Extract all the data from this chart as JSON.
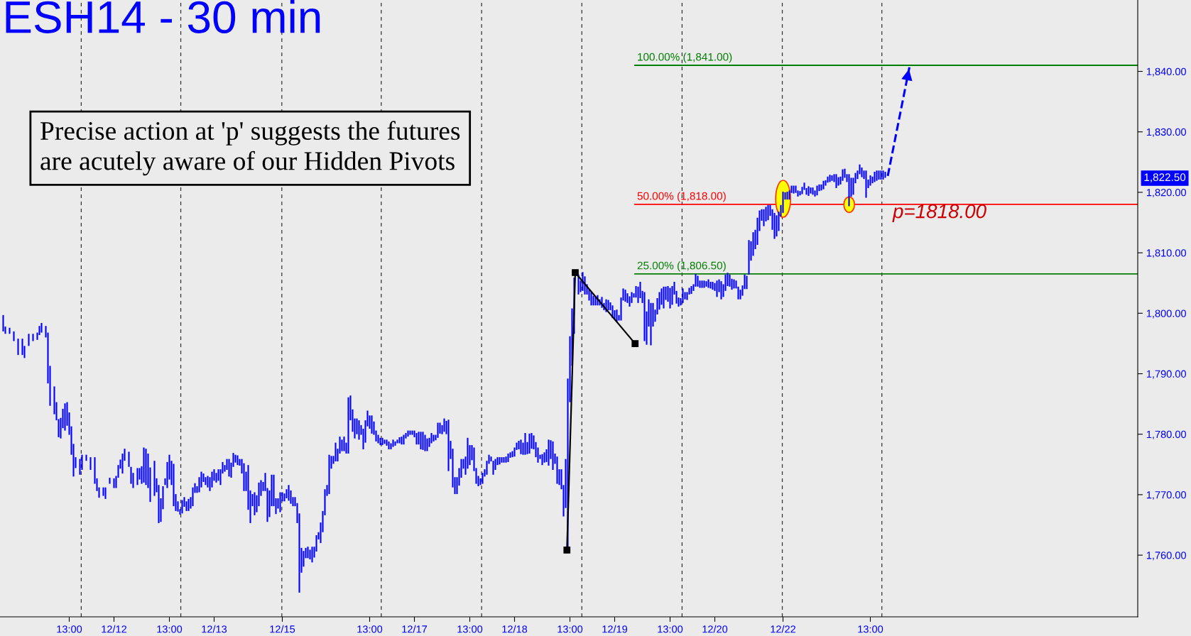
{
  "chart_data": {
    "type": "bar",
    "title": "ESH14 - 30 min",
    "annotations": [
      "Precise action at 'p' suggests the futures\nare acutely aware of our Hidden Pivots",
      "p=1818.00",
      "1,822.50"
    ],
    "categories": [
      null,
      null,
      null,
      null,
      null,
      null,
      null,
      null,
      null,
      null,
      null,
      null,
      null,
      null,
      null,
      null,
      null,
      null,
      null,
      null,
      null,
      null,
      null,
      null,
      null,
      null,
      null,
      null,
      null,
      null,
      null,
      null,
      "13:00",
      null,
      null,
      null,
      null,
      null,
      null,
      null,
      null,
      null,
      null,
      null,
      null,
      null,
      null,
      null,
      null,
      null,
      null,
      null,
      null,
      "12/12",
      null,
      null,
      null,
      null,
      null,
      null,
      null,
      null,
      null,
      null,
      null,
      null,
      null,
      null,
      null,
      null,
      null,
      null,
      null,
      null,
      null,
      null,
      null,
      null,
      null,
      "13:00",
      null,
      null,
      null,
      null,
      null,
      null,
      null,
      null,
      null,
      null,
      null,
      null,
      null,
      null,
      null,
      null,
      null,
      null,
      null,
      null,
      "12/13",
      null,
      null,
      null,
      null,
      null,
      null,
      null,
      null,
      null,
      null,
      null,
      null,
      null,
      null,
      null,
      null,
      null,
      null,
      null,
      null,
      null,
      null,
      null,
      null,
      null,
      null,
      null,
      null,
      null,
      null,
      null,
      "12/15",
      null,
      null,
      null,
      null,
      null,
      null,
      null,
      null,
      null,
      null,
      null,
      null,
      null,
      null,
      null,
      null,
      null,
      null,
      null,
      null,
      null,
      null,
      null,
      null,
      null,
      null,
      null,
      null,
      null,
      null,
      null,
      null,
      null,
      null,
      null,
      null,
      null,
      null,
      null,
      null,
      "13:00",
      null,
      null,
      null,
      null,
      null,
      null,
      null,
      null,
      null,
      null,
      null,
      null,
      null,
      null,
      null,
      null,
      null,
      null,
      null,
      null,
      "12/17",
      null,
      null,
      null,
      null,
      null,
      null,
      null,
      null,
      null,
      null,
      null,
      null,
      null,
      null,
      null,
      null,
      null,
      null,
      null,
      null,
      null,
      null,
      null,
      null,
      null,
      "13:00",
      null,
      null,
      null,
      null,
      null,
      null,
      null,
      null,
      null,
      null,
      null,
      null,
      null,
      null,
      null,
      null,
      null,
      null,
      null,
      null,
      "12/18",
      null,
      null,
      null,
      null,
      null,
      null,
      null,
      null,
      null,
      null,
      null,
      null,
      null,
      null,
      null,
      null,
      null,
      null,
      null,
      null,
      null,
      null,
      null,
      null,
      null,
      "13:00",
      null,
      null,
      null,
      null,
      null,
      null,
      null,
      null,
      null,
      null,
      null,
      null,
      null,
      null,
      null,
      null,
      null,
      null,
      null,
      null,
      "12/19",
      null,
      null,
      null,
      null,
      null,
      null,
      null,
      null,
      null,
      null,
      null,
      null,
      null,
      null,
      null,
      null,
      null,
      null,
      null,
      null,
      null,
      null,
      null,
      null,
      null,
      "13:00",
      null,
      null,
      null,
      null,
      null,
      null,
      null,
      null,
      null,
      null,
      null,
      null,
      null,
      null,
      null,
      null,
      null,
      null,
      null,
      null,
      "12/20",
      null,
      null,
      null,
      null,
      null,
      null,
      null,
      null,
      null,
      null,
      null,
      null,
      null,
      null,
      null,
      null,
      null,
      null,
      null,
      null,
      null,
      null,
      null,
      null,
      null,
      null,
      null,
      null,
      null,
      null,
      null,
      "12/22",
      null,
      null,
      null,
      null,
      null,
      null,
      null,
      null,
      null,
      null,
      null,
      null,
      null,
      null,
      null,
      null,
      null,
      null,
      null,
      null,
      null,
      null,
      null,
      null,
      null,
      null,
      null,
      null,
      null,
      null,
      null,
      null,
      null,
      null,
      null,
      null,
      null,
      null,
      null,
      null,
      "13:00",
      null,
      null,
      null,
      null,
      null,
      null,
      null,
      null,
      null,
      null,
      null,
      null,
      null,
      null,
      null,
      null,
      null,
      null,
      null,
      null,
      null,
      null,
      null,
      null,
      null,
      null,
      null,
      null,
      null,
      null,
      null,
      null,
      null,
      null,
      null,
      null,
      null,
      null,
      null,
      null,
      null,
      null,
      null,
      null,
      null,
      null,
      null,
      null,
      null,
      null,
      null,
      null,
      null,
      null,
      null,
      null,
      null,
      null,
      null,
      null,
      null,
      null,
      null,
      null,
      null,
      null,
      null,
      null,
      null,
      null,
      null,
      null,
      null,
      null,
      null,
      null,
      null,
      null,
      null,
      null,
      null,
      null,
      null,
      null,
      null,
      null,
      null,
      null,
      null,
      null,
      null,
      null,
      null,
      null,
      null,
      null,
      null,
      null,
      null,
      null,
      null,
      null,
      null,
      null,
      null,
      null,
      null,
      null,
      null,
      null,
      null,
      null,
      null,
      null,
      null,
      null,
      null,
      null,
      null,
      null,
      null,
      null,
      null,
      null,
      null
    ],
    "ylim": [
      1749.8,
      1851.8
    ],
    "yticks": [
      {
        "value": 1760,
        "label": "1,760.00"
      },
      {
        "value": 1770,
        "label": "1,770.00"
      },
      {
        "value": 1780,
        "label": "1,780.00"
      },
      {
        "value": 1790,
        "label": "1,790.00"
      },
      {
        "value": 1800,
        "label": "1,800.00"
      },
      {
        "value": 1810,
        "label": "1,810.00"
      },
      {
        "value": 1820,
        "label": "1,820.00"
      },
      {
        "value": 1830,
        "label": "1,830.00"
      },
      {
        "value": 1840,
        "label": "1,840.00"
      }
    ],
    "ref_lines": [
      {
        "axis": "y",
        "value": 1841,
        "label": "100.00% (1,841.00)",
        "color": "#008000"
      },
      {
        "axis": "y",
        "value": 1818,
        "label": "50.00% (1,818.00)",
        "color": "#ff0000"
      },
      {
        "axis": "y",
        "value": 1806.5,
        "label": "25.00% (1,806.50)",
        "color": "#008000"
      }
    ],
    "series": [
      {
        "color": "#0000ff",
        "base": [
          null,
          1797.0,
          1796.6,
          null,
          1796.6,
          null,
          1795.4,
          null,
          1793.1,
          null,
          1793.1,
          1792.6,
          null,
          1794.6,
          null,
          1795.4,
          null,
          1795.6,
          1796.4,
          1796.8,
          null,
          1796.0,
          1788.4,
          1784.7,
          null,
          1783.3,
          1782.3,
          1779.5,
          1779.3,
          1781.0,
          1780.6,
          1781.4,
          1779.9,
          1776.6,
          1773.0,
          1774.4,
          null,
          1773.3,
          1774.1,
          null,
          1775.6,
          null,
          1774.1,
          null,
          1771.8,
          1770.6,
          1769.5,
          null,
          1769.8,
          1769.3,
          null,
          1771.8,
          null,
          1771.1,
          1771.1,
          1772.8,
          1774.3,
          1773.5,
          1775.6,
          null,
          1774.6,
          1771.8,
          1771.1,
          null,
          1771.6,
          1772.5,
          1771.8,
          1772.0,
          1771.6,
          1771.1,
          1768.8,
          null,
          1769.8,
          1770.4,
          1765.3,
          1765.5,
          1767.6,
          1771.6,
          1771.1,
          1772.5,
          1771.6,
          1768.1,
          1767.3,
          1767.2,
          1766.7,
          1766.9,
          1768.0,
          1767.3,
          1767.3,
          1767.7,
          1768.1,
          1770.3,
          1770.3,
          1770.4,
          1771.2,
          1772.1,
          1771.6,
          1771.2,
          1770.6,
          1771.2,
          1772.3,
          1772.0,
          1772.3,
          1771.6,
          1773.5,
          1773.8,
          1774.1,
          1773.0,
          1772.8,
          1774.6,
          1775.3,
          1774.9,
          1774.8,
          1773.5,
          1770.6,
          1770.6,
          1767.5,
          1765.3,
          1768.1,
          1766.6,
          1767.1,
          1768.1,
          1769.8,
          1770.6,
          1770.6,
          1765.5,
          1766.3,
          1768.1,
          1768.1,
          1766.8,
          1767.7,
          1767.1,
          1768.9,
          1768.9,
          1769.4,
          1769.0,
          1768.5,
          1768.1,
          1768.1,
          1765.3,
          1753.8,
          1757.1,
          1758.1,
          1759.5,
          1759.5,
          1759.3,
          1758.8,
          1759.6,
          1760.6,
          1762.6,
          1762.0,
          1763.8,
          1766.6,
          1769.8,
          1770.1,
          1774.3,
          1775.1,
          1775.5,
          1775.5,
          1776.8,
          1777.2,
          1777.2,
          1776.8,
          1776.8,
          1782.3,
          1780.4,
          1779.3,
          1780.0,
          1779.1,
          1779.9,
          1777.5,
          1778.6,
          1781.3,
          1780.9,
          1780.1,
          1779.9,
          1778.8,
          1778.5,
          1778.2,
          1778.2,
          1778.4,
          1778.1,
          1777.5,
          1777.5,
          1777.9,
          1778.1,
          1778.5,
          1778.5,
          1778.3,
          1778.3,
          1779.3,
          1779.6,
          1779.9,
          1779.9,
          1779.5,
          1778.3,
          1778.3,
          1777.5,
          1777.4,
          1777.2,
          1777.2,
          1777.9,
          1778.5,
          1778.8,
          1779.0,
          1779.4,
          1780.1,
          1780.0,
          1780.4,
          1780.0,
          1773.9,
          1775.9,
          1771.2,
          1770.1,
          1770.1,
          1771.5,
          1772.8,
          1774.3,
          1773.3,
          1774.3,
          1774.9,
          1775.7,
          1773.9,
          1771.8,
          1771.4,
          1771.6,
          1771.8,
          1773.0,
          1773.3,
          1775.1,
          1775.5,
          1773.3,
          1774.1,
          1774.9,
          1775.0,
          1775.3,
          1775.3,
          1775.3,
          1775.4,
          1776.1,
          1776.2,
          1776.3,
          1777.4,
          1777.5,
          1776.7,
          1776.6,
          1776.6,
          1776.7,
          1776.8,
          1777.6,
          1777.5,
          1776.2,
          1775.3,
          1775.9,
          1774.9,
          1775.3,
          1775.4,
          1774.8,
          1775.9,
          1774.1,
          1775.1,
          1771.8,
          1771.6,
          1770.9,
          1766.4,
          1767.8,
          1761.0,
          1785.3,
          1791.3,
          1796.6,
          null,
          1803.1,
          1803.5,
          1803.7,
          1803.1,
          1803.1,
          1802.1,
          1801.3,
          1801.3,
          1801.3,
          1801.3,
          1801.3,
          1800.9,
          1800.5,
          1800.2,
          1800.5,
          1800.5,
          1799.2,
          1799.0,
          1798.6,
          1798.8,
          1798.8,
          1802.1,
          1801.9,
          1801.7,
          1801.1,
          1801.7,
          1802.6,
          1802.6,
          1801.7,
          1802.5,
          1801.7,
          1795.4,
          1794.8,
          1797.8,
          1794.7,
          1797.8,
          1798.6,
          1799.8,
          1800.6,
          1801.4,
          1800.8,
          1802.2,
          1801.9,
          1800.8,
          1801.4,
          1803.1,
          1801.6,
          1801.1,
          1801.3,
          1801.7,
          1802.3,
          1802.2,
          1803.1,
          1803.2,
          1803.7,
          1804.4,
          1804.4,
          1804.2,
          1804.2,
          1804.2,
          1804.4,
          1804.2,
          1804.1,
          1803.9,
          1803.7,
          1802.7,
          1803.5,
          1802.3,
          1802.7,
          1803.7,
          1804.5,
          1804.4,
          1803.9,
          1804.1,
          1804.1,
          1802.3,
          1802.3,
          1802.9,
          1804.0,
          1804.0,
          1806.4,
          1808.7,
          1809.5,
          1810.6,
          1811.3,
          1813.6,
          1815.3,
          1814.4,
          1815.2,
          1815.4,
          1816.1,
          1813.8,
          1812.3,
          1812.7,
          1813.6,
          1816.0,
          1816.6,
          1818.8,
          1818.8,
          1818.8,
          1819.9,
          1819.8,
          1819.9,
          1819.3,
          1819.5,
          1819.7,
          1820.4,
          1819.6,
          1819.4,
          1819.8,
          1819.6,
          1819.3,
          1819.5,
          1820.2,
          1820.3,
          1820.5,
          1821.1,
          1821.6,
          1821.7,
          1821.9,
          1821.7,
          1820.7,
          1821.1,
          1821.3,
          1821.9,
          1822.4,
          1821.7,
          1817.7,
          1819.3,
          1819.6,
          1821.5,
          1822.2,
          1823.0,
          1822.5,
          1822.2,
          1819.1,
          1820.7,
          1821.1,
          1821.5,
          1821.7,
          1821.9,
          1822.1,
          1822.1,
          1822.1,
          1822.4,
          null,
          null,
          null,
          null,
          null,
          null,
          null,
          null,
          null,
          null,
          null,
          null,
          null,
          null,
          null,
          null,
          null,
          null,
          null,
          null,
          null,
          null,
          null,
          null,
          null,
          null,
          null,
          null,
          null,
          null,
          null,
          null,
          null,
          null,
          null,
          null,
          null,
          null,
          null,
          null,
          null,
          null,
          null,
          null,
          null,
          null,
          null,
          null,
          null,
          null,
          null,
          null,
          null,
          null,
          null,
          null,
          null,
          null,
          null,
          null,
          null,
          null,
          null,
          null,
          null,
          null,
          null,
          null,
          null,
          null,
          null,
          null,
          null,
          null,
          null,
          null,
          null,
          null,
          null,
          null,
          null,
          null,
          null,
          null,
          null,
          null,
          null,
          null,
          null,
          null,
          null,
          null,
          null,
          null,
          null,
          null,
          null,
          null,
          null,
          null,
          null,
          null,
          null,
          null,
          null,
          null,
          null,
          null,
          null,
          null,
          null,
          null,
          null,
          null,
          null,
          null,
          null,
          null
        ],
        "values": [
          null,
          2.7,
          1.2,
          null,
          1.0,
          null,
          1.6,
          null,
          2.7,
          null,
          2.7,
          2.0,
          null,
          2.0,
          null,
          1.2,
          null,
          1.2,
          1.5,
          1.6,
          null,
          1.9,
          8.4,
          6.6,
          null,
          4.6,
          3.0,
          3.0,
          3.4,
          3.2,
          4.5,
          3.9,
          3.7,
          4.7,
          5.4,
          1.8,
          null,
          2.6,
          2.5,
          null,
          1.0,
          null,
          2.1,
          null,
          4.4,
          2.1,
          1.7,
          null,
          1.4,
          1.9,
          null,
          1.0,
          null,
          1.6,
          2.0,
          2.1,
          1.5,
          3.3,
          2.0,
          null,
          2.5,
          2.8,
          2.5,
          null,
          2.8,
          1.9,
          2.9,
          5.8,
          6.0,
          5.7,
          5.7,
          null,
          5.8,
          2.3,
          6.3,
          3.9,
          3.8,
          1.1,
          4.3,
          4.1,
          4.0,
          7.0,
          2.8,
          1.7,
          0.9,
          2.2,
          1.6,
          1.6,
          2.0,
          1.9,
          3.1,
          1.6,
          1.1,
          2.5,
          2.6,
          1.4,
          1.3,
          1.9,
          2.3,
          2.6,
          1.9,
          1.6,
          1.9,
          2.6,
          1.9,
          1.1,
          1.8,
          2.9,
          2.5,
          2.3,
          1.3,
          1.6,
          1.1,
          2.4,
          4.6,
          3.2,
          7.4,
          5.4,
          2.0,
          3.8,
          2.8,
          3.9,
          2.6,
          1.5,
          3.0,
          5.6,
          4.4,
          5.2,
          5.2,
          2.6,
          1.7,
          3.3,
          1.5,
          1.3,
          1.5,
          2.6,
          2.2,
          1.5,
          1.5,
          3.3,
          13.1,
          4.1,
          2.6,
          1.7,
          1.9,
          1.6,
          2.6,
          1.8,
          2.7,
          1.2,
          3.4,
          3.5,
          4.3,
          1.8,
          6.5,
          2.1,
          1.3,
          3.1,
          2.1,
          2.8,
          1.9,
          2.4,
          1.8,
          9.3,
          4.1,
          3.7,
          3.3,
          2.6,
          3.2,
          1.6,
          3.4,
          3.7,
          2.6,
          2.2,
          3.0,
          2.2,
          1.8,
          1.4,
          1.2,
          1.2,
          0.7,
          1.0,
          1.3,
          1.0,
          1.2,
          0.7,
          0.6,
          1.0,
          1.3,
          1.6,
          0.9,
          1.0,
          0.7,
          0.7,
          1.1,
          1.9,
          2.1,
          2.9,
          3.0,
          2.7,
          2.1,
          1.5,
          1.7,
          1.1,
          0.9,
          2.5,
          1.8,
          1.5,
          2.2,
          2.2,
          8.5,
          3.0,
          6.4,
          2.8,
          2.8,
          2.9,
          3.1,
          1.6,
          3.0,
          5.1,
          3.3,
          2.5,
          3.9,
          2.6,
          1.7,
          1.1,
          1.8,
          1.2,
          2.3,
          1.5,
          0.8,
          2.3,
          1.8,
          1.3,
          1.2,
          0.9,
          0.9,
          1.0,
          1.4,
          0.9,
          1.0,
          1.5,
          1.2,
          1.4,
          2.4,
          2.0,
          3.6,
          2.0,
          3.3,
          2.6,
          2.3,
          2.5,
          2.5,
          0.7,
          1.8,
          1.7,
          2.1,
          4.3,
          3.1,
          4.7,
          1.7,
          4.5,
          2.6,
          3.3,
          5.2,
          8.1,
          28.2,
          10.9,
          9.5,
          9.3,
          null,
          3.3,
          1.9,
          3.1,
          3.0,
          1.7,
          1.9,
          2.2,
          1.6,
          1.4,
          1.7,
          1.0,
          1.8,
          1.2,
          2.1,
          1.7,
          1.3,
          2.1,
          1.5,
          2.0,
          0.9,
          3.8,
          2.0,
          2.0,
          1.6,
          1.7,
          1.8,
          0.7,
          1.9,
          2.7,
          2.7,
          2.0,
          8.1,
          5.5,
          4.5,
          7.0,
          3.9,
          2.0,
          2.7,
          2.9,
          2.7,
          3.6,
          2.2,
          2.6,
          3.4,
          3.1,
          2.1,
          2.1,
          1.5,
          1.2,
          2.4,
          1.2,
          1.3,
          1.1,
          1.3,
          1.1,
          2.1,
          1.8,
          1.2,
          1.2,
          1.2,
          0.9,
          1.4,
          1.1,
          1.3,
          1.3,
          2.7,
          2.1,
          3.0,
          2.1,
          2.7,
          2.2,
          2.0,
          1.8,
          1.5,
          1.3,
          2.1,
          1.6,
          1.7,
          2.4,
          2.2,
          5.7,
          3.2,
          3.9,
          3.2,
          4.5,
          3.4,
          1.9,
          2.8,
          2.4,
          2.5,
          1.8,
          3.4,
          4.3,
          3.5,
          3.2,
          1.9,
          3.5,
          1.2,
          1.3,
          1.5,
          1.2,
          1.3,
          1.2,
          1.0,
          0.7,
          1.2,
          1.2,
          1.1,
          1.6,
          1.0,
          1.2,
          1.0,
          1.6,
          1.1,
          1.0,
          1.4,
          0.9,
          1.0,
          1.2,
          0.9,
          1.3,
          2.3,
          1.4,
          1.3,
          1.9,
          1.5,
          1.3,
          5.3,
          3.1,
          2.8,
          1.7,
          1.4,
          1.6,
          1.6,
          1.4,
          4.5,
          1.4,
          1.7,
          1.1,
          1.7,
          1.7,
          1.5,
          1.5,
          1.5,
          1.0,
          null,
          null,
          null,
          null,
          null,
          null,
          null,
          null,
          null,
          null,
          null,
          null,
          null,
          null,
          null,
          null,
          null,
          null,
          null,
          null,
          null,
          null,
          null,
          null,
          null,
          null,
          null,
          null,
          null,
          null,
          null,
          null,
          null,
          null,
          null,
          null,
          null,
          null,
          null,
          null,
          null,
          null,
          null,
          null,
          null,
          null,
          null,
          null,
          null,
          null,
          null,
          null,
          null,
          null,
          null,
          null,
          null,
          null,
          null,
          null,
          null,
          null,
          null,
          null,
          null,
          null,
          null,
          null,
          null,
          null,
          null,
          null,
          null,
          null,
          null,
          null,
          null,
          null,
          null,
          null,
          null,
          null,
          null,
          null,
          null,
          null,
          null,
          null,
          null,
          null,
          null,
          null,
          null,
          null,
          null,
          null,
          null,
          null,
          null,
          null,
          null,
          null,
          null,
          null,
          null,
          null,
          null,
          null,
          null,
          null,
          null,
          null,
          null,
          null,
          null,
          null,
          null,
          null
        ]
      }
    ]
  }
}
